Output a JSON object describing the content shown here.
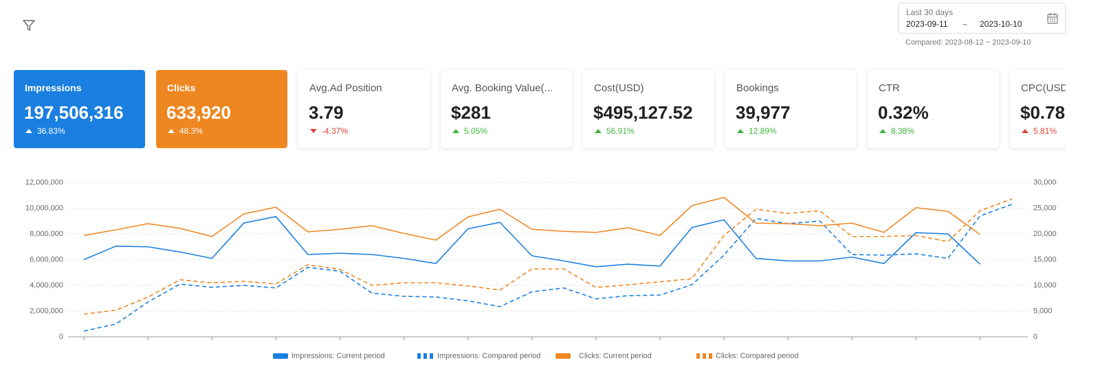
{
  "header": {
    "date_range_label": "Last 30 days",
    "start_date": "2023-09-11",
    "separator": "~",
    "end_date": "2023-10-10",
    "compared": "Compared: 2023-08-12 ~ 2023-09-10"
  },
  "cards": [
    {
      "name": "Impressions",
      "value": "197,506,316",
      "change": "36.83%",
      "trend": "up",
      "color": "#1a7fe0"
    },
    {
      "name": "Clicks",
      "value": "633,920",
      "change": "48.3%",
      "trend": "up",
      "color": "#ee8722"
    },
    {
      "name": "Avg.Ad Position",
      "value": "3.79",
      "change": "-4.37%",
      "trend": "down",
      "change_color": "#e0403a"
    },
    {
      "name": "Avg. Booking Value(...",
      "value": "$281",
      "change": "5.05%",
      "trend": "up",
      "change_color": "#3db43d"
    },
    {
      "name": "Cost(USD)",
      "value": "$495,127.52",
      "change": "56.91%",
      "trend": "up",
      "change_color": "#3db43d"
    },
    {
      "name": "Bookings",
      "value": "39,977",
      "change": "12.89%",
      "trend": "up",
      "change_color": "#3db43d"
    },
    {
      "name": "CTR",
      "value": "0.32%",
      "change": "8.38%",
      "trend": "up",
      "change_color": "#3db43d"
    },
    {
      "name": "CPC(USD)",
      "value": "$0.78",
      "change": "5.81%",
      "trend": "up",
      "change_color": "#e0403a"
    }
  ],
  "chart_data": {
    "type": "line",
    "categories": [
      null,
      null,
      null,
      null,
      null,
      null,
      null,
      null,
      null,
      null,
      null,
      null,
      null,
      null,
      null,
      null,
      null,
      null,
      null,
      null,
      null,
      null,
      null,
      null,
      null,
      null,
      null,
      null,
      null,
      null
    ],
    "series": [
      {
        "name": "Impressions: Current period",
        "color": "#1a7fe0",
        "dashed": false,
        "values": [
          6000000,
          7050000,
          7000000,
          6600000,
          6100000,
          8850000,
          9350000,
          6400000,
          6500000,
          6400000,
          6100000,
          5700000,
          8400000,
          8900000,
          6300000,
          5900000,
          5450000,
          5650000,
          5500000,
          8500000,
          9100000,
          6100000,
          5900000,
          5900000,
          6200000,
          5700000,
          8100000,
          8000000,
          5650000,
          null
        ]
      },
      {
        "name": "Impressions: Compared period",
        "color": "#1a7fe0",
        "dashed": true,
        "values": [
          450000,
          1000000,
          2700000,
          4100000,
          3850000,
          4000000,
          3800000,
          5400000,
          5100000,
          3400000,
          3150000,
          3100000,
          2800000,
          2350000,
          3500000,
          3800000,
          2950000,
          3200000,
          3250000,
          4050000,
          6350000,
          9200000,
          8800000,
          9000000,
          6400000,
          6350000,
          6450000,
          6100000,
          9400000,
          10300000
        ]
      },
      {
        "name": "Clicks: Current period",
        "color": "#ee8722",
        "dashed": false,
        "axis": "y2",
        "values": [
          19700,
          20800,
          22000,
          21100,
          19500,
          23900,
          25200,
          20400,
          20900,
          21600,
          20100,
          18800,
          23300,
          24800,
          20900,
          20500,
          20300,
          21200,
          19700,
          25500,
          27100,
          22100,
          22000,
          21600,
          22100,
          20300,
          25100,
          24400,
          19900,
          null
        ]
      },
      {
        "name": "Clicks: Compared period",
        "color": "#ee8722",
        "dashed": true,
        "axis": "y2",
        "values": [
          4400,
          5200,
          7700,
          11100,
          10500,
          10800,
          10300,
          14000,
          13100,
          10000,
          10500,
          10500,
          9900,
          9100,
          13200,
          13200,
          9600,
          10100,
          10700,
          11300,
          19700,
          24800,
          24000,
          24500,
          19500,
          19500,
          19700,
          18500,
          24500,
          26800
        ]
      }
    ],
    "ylim": [
      0,
      12000000
    ],
    "yticks": [
      0,
      {
        "value": 2000000,
        "label": "2,000,000"
      },
      {
        "value": 4000000,
        "label": "4,000,000"
      },
      {
        "value": 6000000,
        "label": "6,000,000"
      },
      {
        "value": 8000000,
        "label": "8,000,000"
      },
      {
        "value": 10000000,
        "label": "10,000,000"
      },
      {
        "value": 12000000,
        "label": "12,000,000"
      }
    ],
    "y2lim": [
      0,
      30000
    ],
    "y2ticks": [
      0,
      {
        "value": 5000,
        "label": "5,000"
      },
      {
        "value": 10000,
        "label": "10,000"
      },
      {
        "value": 15000,
        "label": "15,000"
      },
      {
        "value": 20000,
        "label": "20,000"
      },
      {
        "value": 25000,
        "label": "25,000"
      },
      {
        "value": 30000,
        "label": "30,000"
      }
    ],
    "grid": true,
    "legend": "bottom"
  }
}
